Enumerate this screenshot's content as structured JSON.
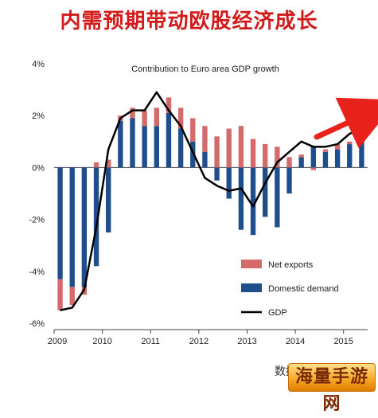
{
  "header": {
    "title": "内需预期带动欧股经济成长"
  },
  "source_text": "数据源：IMF",
  "watermark_text": "海量手游网",
  "colors": {
    "net_exports": "#d46a6a",
    "domestic_demand": "#1f4e8c",
    "gdp": "#000000",
    "arrow": "#e8211a",
    "title": "#d31a1a"
  },
  "chart_data": {
    "type": "bar",
    "title": "Contribution to Euro area GDP growth",
    "x_tick_labels": [
      "2009",
      "2010",
      "2011",
      "2012",
      "2013",
      "2014",
      "2015"
    ],
    "y_tick_labels": [
      "4%",
      "2%",
      "0%",
      "-2%",
      "-4%",
      "-6%"
    ],
    "y_ticks": [
      4,
      2,
      0,
      -2,
      -4,
      -6
    ],
    "ylim": [
      -6,
      4
    ],
    "legend": {
      "placement": "bottom-right",
      "items": [
        "Net exports",
        "Domestic demand",
        "GDP"
      ]
    },
    "quarters": [
      "2009Q1",
      "2009Q2",
      "2009Q3",
      "2009Q4",
      "2010Q1",
      "2010Q2",
      "2010Q3",
      "2010Q4",
      "2011Q1",
      "2011Q2",
      "2011Q3",
      "2011Q4",
      "2012Q1",
      "2012Q2",
      "2012Q3",
      "2012Q4",
      "2013Q1",
      "2013Q2",
      "2013Q3",
      "2013Q4",
      "2014Q1",
      "2014Q2",
      "2014Q3",
      "2014Q4",
      "2015Q1",
      "2015Q2"
    ],
    "series": [
      {
        "name": "Domestic demand",
        "values": [
          -4.3,
          -4.6,
          -4.6,
          -3.8,
          -2.5,
          1.8,
          1.9,
          1.6,
          1.6,
          2.1,
          1.5,
          1.0,
          0.6,
          -0.5,
          -1.2,
          -2.4,
          -2.6,
          -1.9,
          -2.3,
          -1.0,
          0.4,
          0.8,
          0.6,
          0.7,
          0.9,
          1.4
        ]
      },
      {
        "name": "Net exports",
        "values": [
          -1.2,
          -0.7,
          -0.3,
          0.2,
          0.3,
          0.2,
          0.4,
          0.6,
          0.7,
          0.6,
          0.8,
          0.9,
          1.0,
          1.2,
          1.5,
          1.6,
          1.1,
          0.9,
          0.8,
          0.4,
          0.1,
          -0.1,
          0.1,
          0.2,
          0.1,
          0.1
        ]
      },
      {
        "name": "GDP",
        "values": [
          -5.5,
          -5.4,
          -4.7,
          -2.3,
          0.7,
          1.9,
          2.2,
          2.2,
          2.9,
          2.2,
          1.6,
          0.6,
          -0.4,
          -0.7,
          -0.9,
          -0.8,
          -1.5,
          -0.6,
          0.2,
          0.6,
          1.0,
          0.8,
          0.8,
          0.9,
          1.3,
          1.5
        ]
      }
    ],
    "annotation": "upward red arrow near 2015"
  }
}
